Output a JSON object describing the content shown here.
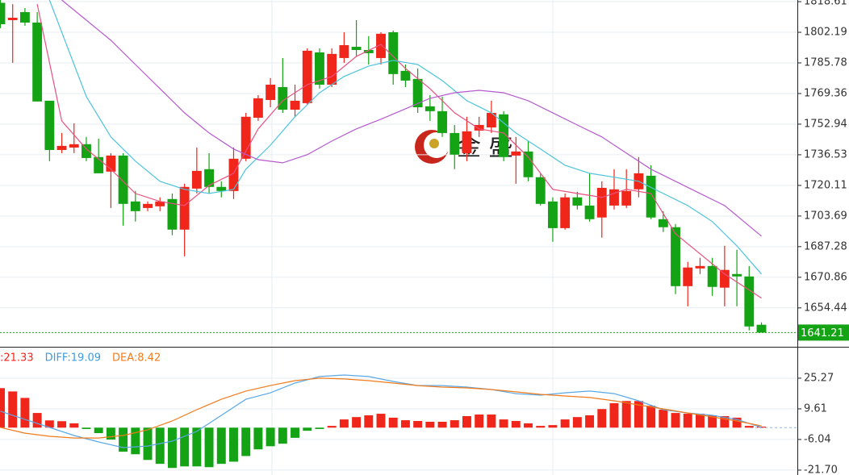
{
  "chart_data": [
    {
      "type": "candlestick",
      "categories": [
        null,
        null,
        null,
        null,
        null,
        null,
        null,
        null,
        null,
        null,
        null,
        null,
        null,
        null,
        null,
        null,
        null,
        null,
        null,
        null,
        null,
        null,
        null,
        null,
        null,
        null,
        null,
        null,
        null,
        null,
        null,
        null,
        null,
        null,
        null,
        null,
        null,
        null,
        null,
        null,
        null,
        null,
        null,
        null,
        null,
        null,
        null,
        null,
        null,
        null,
        null,
        null,
        null,
        null,
        null,
        null,
        null,
        null,
        null,
        null,
        null,
        null,
        null
      ],
      "open": [
        1818.0,
        1808.7,
        1813.0,
        1807.4,
        1765.5,
        1739.1,
        1740.4,
        1742.2,
        1735.3,
        1727.5,
        1736.1,
        1711.5,
        1708.0,
        1708.9,
        1712.8,
        1696.4,
        1718.4,
        1728.8,
        1719.3,
        1717.1,
        1734.4,
        1756.4,
        1765.9,
        1772.8,
        1760.7,
        1764.2,
        1791.4,
        1774.1,
        1788.4,
        1794.4,
        1792.7,
        1788.4,
        1802.2,
        1781.5,
        1777.2,
        1762.5,
        1759.9,
        1748.2,
        1737.4,
        1749.5,
        1751.2,
        1758.2,
        1736.1,
        1738.3,
        1724.5,
        1711.5,
        1697.2,
        1713.7,
        1709.3,
        1702.9,
        1709.3,
        1709.3,
        1718.0,
        1725.3,
        1702.0,
        1697.7,
        1666.1,
        1675.6,
        1676.9,
        1665.3,
        1672.6,
        1671.3,
        1645.4
      ],
      "high": [
        1819.5,
        1817.3,
        1815.2,
        1813.0,
        1765.5,
        1748.2,
        1753.4,
        1746.1,
        1745.2,
        1737.4,
        1737.4,
        1717.1,
        1711.5,
        1713.7,
        1715.8,
        1721.0,
        1740.4,
        1737.4,
        1722.3,
        1740.4,
        1759.0,
        1768.5,
        1777.6,
        1788.4,
        1774.1,
        1793.6,
        1793.6,
        1793.6,
        1802.2,
        1808.7,
        1800.1,
        1802.2,
        1803.1,
        1784.9,
        1782.8,
        1768.5,
        1767.7,
        1752.5,
        1756.9,
        1756.9,
        1765.5,
        1759.9,
        1746.1,
        1743.9,
        1726.6,
        1713.7,
        1715.8,
        1716.7,
        1726.6,
        1722.3,
        1728.8,
        1728.8,
        1735.3,
        1730.9,
        1706.3,
        1699.4,
        1679.1,
        1681.3,
        1681.3,
        1687.7,
        1685.6,
        1676.9,
        1646.7
      ],
      "low": [
        1804.4,
        1785.8,
        1805.7,
        1765.1,
        1733.1,
        1737.4,
        1737.4,
        1733.1,
        1726.6,
        1708.0,
        1698.5,
        1700.7,
        1706.3,
        1706.3,
        1693.4,
        1682.1,
        1715.8,
        1715.8,
        1713.7,
        1712.8,
        1733.1,
        1754.7,
        1762.0,
        1759.0,
        1756.9,
        1763.3,
        1772.0,
        1772.8,
        1785.8,
        1789.3,
        1784.9,
        1784.9,
        1774.1,
        1772.8,
        1759.0,
        1754.7,
        1746.1,
        1728.8,
        1733.1,
        1746.1,
        1748.2,
        1733.1,
        1721.0,
        1722.3,
        1709.3,
        1689.9,
        1696.4,
        1707.2,
        1700.7,
        1692.1,
        1707.2,
        1708.0,
        1713.7,
        1702.0,
        1695.1,
        1661.8,
        1655.3,
        1672.6,
        1660.9,
        1655.3,
        1655.3,
        1642.4,
        1641.5
      ],
      "close": [
        1806.5,
        1810.0,
        1807.4,
        1765.1,
        1739.1,
        1741.3,
        1742.2,
        1734.8,
        1726.6,
        1736.1,
        1710.2,
        1706.3,
        1710.2,
        1711.5,
        1696.4,
        1719.3,
        1727.9,
        1719.3,
        1717.1,
        1734.4,
        1756.9,
        1766.8,
        1774.1,
        1760.7,
        1765.5,
        1792.3,
        1774.1,
        1790.6,
        1795.3,
        1792.7,
        1791.0,
        1801.4,
        1779.8,
        1776.3,
        1762.0,
        1759.9,
        1748.2,
        1736.6,
        1749.1,
        1752.5,
        1759.0,
        1735.3,
        1738.3,
        1724.5,
        1710.2,
        1697.2,
        1713.7,
        1709.3,
        1702.0,
        1718.8,
        1718.0,
        1717.1,
        1726.6,
        1702.9,
        1697.7,
        1666.1,
        1676.1,
        1676.9,
        1665.7,
        1674.8,
        1671.3,
        1644.5,
        1641.2
      ],
      "up_color": "#f0261b",
      "down_color": "#14a314",
      "series": [
        {
          "color": "#e8507e",
          "x": [
            3,
            5,
            7,
            9,
            11,
            13,
            15,
            17,
            19,
            21,
            23,
            25,
            27,
            29,
            31,
            33,
            35,
            37,
            39,
            41,
            43,
            45,
            47,
            49,
            51,
            53,
            55,
            57,
            59,
            62
          ],
          "values": [
            1817.3,
            1754.7,
            1739.6,
            1728.8,
            1715.8,
            1711.5,
            1709.3,
            1720.1,
            1726.6,
            1750.4,
            1765.5,
            1774.1,
            1778.5,
            1789.3,
            1795.7,
            1782.8,
            1772.0,
            1759.0,
            1750.4,
            1748.2,
            1735.3,
            1718.0,
            1715.8,
            1713.7,
            1718.0,
            1715.8,
            1694.2,
            1683.4,
            1672.6,
            1659.7
          ]
        },
        {
          "color": "#4cc4da",
          "x": [
            4,
            7,
            9,
            11,
            13,
            15,
            17,
            19,
            20,
            22,
            24,
            26,
            28,
            30,
            32,
            34,
            36,
            38,
            40,
            42,
            44,
            46,
            48,
            50,
            52,
            54,
            56,
            58,
            60,
            62
          ],
          "values": [
            1819.5,
            1767.7,
            1746.1,
            1733.1,
            1722.3,
            1718.0,
            1715.8,
            1718.0,
            1728.8,
            1741.7,
            1756.9,
            1769.8,
            1778.5,
            1784.1,
            1787.1,
            1784.9,
            1776.3,
            1765.5,
            1759.0,
            1748.2,
            1739.6,
            1730.9,
            1726.6,
            1724.5,
            1722.3,
            1715.8,
            1709.3,
            1700.7,
            1687.7,
            1672.6
          ]
        },
        {
          "color": "#b65ad0",
          "x": [
            5,
            7,
            9,
            11,
            13,
            15,
            17,
            19,
            21,
            23,
            25,
            27,
            29,
            31,
            33,
            35,
            37,
            39,
            41,
            43,
            45,
            47,
            49,
            51,
            53,
            55,
            57,
            59,
            62
          ],
          "values": [
            1819.5,
            1808.7,
            1797.9,
            1784.9,
            1772.0,
            1759.0,
            1748.2,
            1739.6,
            1733.9,
            1732.2,
            1736.6,
            1743.9,
            1750.4,
            1755.6,
            1761.2,
            1766.8,
            1769.8,
            1771.1,
            1769.8,
            1765.5,
            1759.0,
            1752.5,
            1746.1,
            1737.4,
            1728.8,
            1722.3,
            1715.8,
            1709.3,
            1692.9
          ]
        }
      ],
      "ylim": [
        1633.6,
        1819.5
      ],
      "yticks": [
        1818.61,
        1802.19,
        1785.78,
        1769.36,
        1752.94,
        1736.53,
        1720.11,
        1703.69,
        1687.28,
        1670.86,
        1654.44
      ],
      "last_price": 1641.21,
      "last_color": "#14a314",
      "grid": true,
      "watermark": "金 盛"
    },
    {
      "type": "macd",
      "legend": [
        {
          "text": ":21.33",
          "color": "#f0261b"
        },
        {
          "text": "DIFF:19.09",
          "color": "#3d9be0"
        },
        {
          "text": "DEA:8.42",
          "color": "#f07b1c"
        }
      ],
      "values": [
        20.2,
        18.5,
        15.2,
        7.5,
        3.7,
        3.3,
        2.2,
        -0.7,
        -2.8,
        -6.1,
        -12.3,
        -13.6,
        -16.5,
        -18.5,
        -20.6,
        -19.8,
        -19.8,
        -20.2,
        -18.5,
        -17.4,
        -14.5,
        -11.1,
        -9.5,
        -8.2,
        -5.2,
        -1.6,
        -0.7,
        0.9,
        4.2,
        5.4,
        6.3,
        7.1,
        5.1,
        3.8,
        3.4,
        3.0,
        3.0,
        3.8,
        5.9,
        6.7,
        6.7,
        4.2,
        3.4,
        2.2,
        0.9,
        1.3,
        4.2,
        5.4,
        6.3,
        9.5,
        12.5,
        13.6,
        13.6,
        11.2,
        9.2,
        7.5,
        7.1,
        7.1,
        6.3,
        5.9,
        5.1,
        0.9,
        0.5
      ],
      "up_color": "#f0261b",
      "down_color": "#14a314",
      "series": [
        {
          "color": "#5aa8e6",
          "x": [
            0,
            2,
            4,
            6,
            8,
            10,
            12,
            14,
            16,
            18,
            20,
            22,
            24,
            26,
            28,
            30,
            32,
            34,
            36,
            38,
            40,
            42,
            44,
            46,
            48,
            50,
            52,
            54,
            56,
            58,
            60,
            62
          ],
          "values": [
            8.4,
            4.2,
            0.1,
            -4.0,
            -7.3,
            -10.2,
            -9.4,
            -6.9,
            -1.9,
            6.3,
            14.5,
            17.8,
            22.8,
            26.1,
            26.9,
            26.1,
            23.6,
            21.5,
            21.5,
            20.7,
            19.5,
            17.4,
            16.6,
            17.8,
            18.7,
            17.4,
            13.7,
            9.2,
            7.5,
            6.3,
            4.2,
            0.1
          ]
        },
        {
          "color": "#f07b1c",
          "x": [
            0,
            2,
            4,
            6,
            8,
            10,
            12,
            14,
            16,
            18,
            20,
            22,
            24,
            26,
            28,
            30,
            32,
            34,
            36,
            38,
            40,
            42,
            44,
            46,
            48,
            50,
            52,
            54,
            56,
            58,
            60,
            62
          ],
          "values": [
            0.1,
            -2.8,
            -4.4,
            -5.3,
            -5.3,
            -4.0,
            -1.1,
            3.4,
            9.2,
            14.5,
            18.7,
            21.5,
            24.0,
            25.3,
            24.9,
            24.0,
            22.8,
            21.5,
            20.7,
            20.3,
            19.5,
            18.3,
            17.0,
            16.2,
            15.4,
            13.7,
            11.6,
            9.6,
            7.5,
            5.5,
            3.4,
            0.9
          ]
        }
      ],
      "ylim": [
        -24.2,
        40.5
      ],
      "yticks": [
        25.27,
        9.61,
        -6.04,
        {
          "value": -21.7,
          "label": "-21.70"
        }
      ],
      "grid": true
    }
  ]
}
